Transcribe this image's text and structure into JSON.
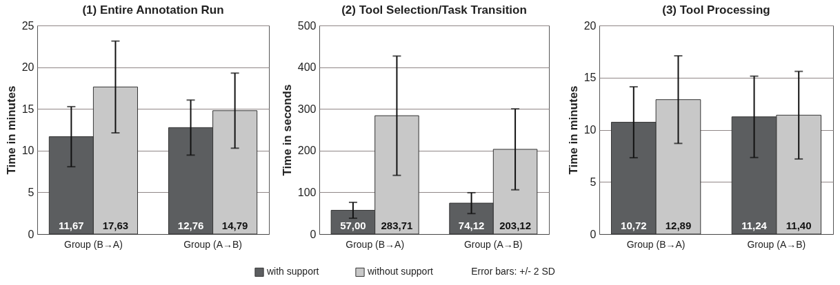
{
  "chart_data": [
    {
      "type": "bar",
      "title": "(1) Entire Annotation Run",
      "ylabel": "Time in minutes",
      "categories": [
        "Group (B→A)",
        "Group (A→B)"
      ],
      "series": [
        {
          "name": "with support",
          "color": "#5c5e60",
          "values": [
            11.67,
            12.76
          ],
          "value_labels": [
            "11,67",
            "12,76"
          ],
          "errors": [
            3.6,
            3.3
          ]
        },
        {
          "name": "without support",
          "color": "#c8c8c8",
          "values": [
            17.63,
            14.79
          ],
          "value_labels": [
            "17,63",
            "14,79"
          ],
          "errors": [
            5.5,
            4.5
          ]
        }
      ],
      "ylim": [
        0,
        25
      ],
      "yticks": [
        0,
        5,
        10,
        15,
        20,
        25
      ],
      "grid": "y",
      "legend": "bottom",
      "annotations": [
        "Error bars: +/- 2 SD"
      ]
    },
    {
      "type": "bar",
      "title": "(2) Tool Selection/Task Transition",
      "ylabel": "Time in seconds",
      "categories": [
        "Group (B→A)",
        "Group (A→B)"
      ],
      "series": [
        {
          "color": "#5c5e60",
          "values": [
            57.0,
            74.12
          ],
          "value_labels": [
            "57,00",
            "74,12"
          ],
          "errors": [
            19,
            25
          ]
        },
        {
          "color": "#c8c8c8",
          "values": [
            283.71,
            203.12
          ],
          "value_labels": [
            "283,71",
            "203,12"
          ],
          "errors": [
            143,
            97
          ]
        }
      ],
      "ylim": [
        0,
        500
      ],
      "yticks": [
        0,
        100,
        200,
        300,
        400,
        500
      ],
      "grid": "y"
    },
    {
      "type": "bar",
      "title": "(3) Tool Processing",
      "ylabel": "Time in minutes",
      "categories": [
        "Group (B→A)",
        "Group (A→B)"
      ],
      "series": [
        {
          "color": "#5c5e60",
          "values": [
            10.72,
            11.24
          ],
          "value_labels": [
            "10,72",
            "11,24"
          ],
          "errors": [
            3.4,
            3.9
          ]
        },
        {
          "color": "#c8c8c8",
          "values": [
            12.89,
            11.4
          ],
          "value_labels": [
            "12,89",
            "11,40"
          ],
          "errors": [
            4.2,
            4.2
          ]
        }
      ],
      "ylim": [
        0,
        20
      ],
      "yticks": [
        0,
        5,
        10,
        15,
        20
      ],
      "grid": "y"
    }
  ]
}
